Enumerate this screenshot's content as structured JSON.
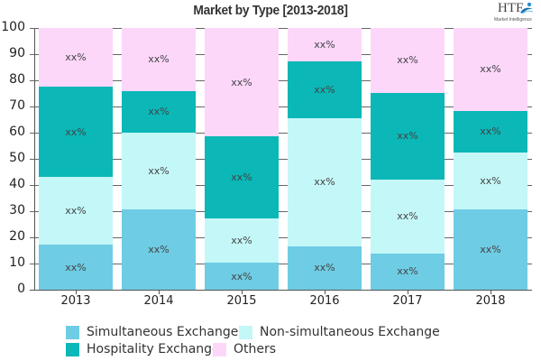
{
  "title": "Market by Type [2013-2018]",
  "logo": {
    "main": "HTF",
    "sub": "Market Intelligence"
  },
  "colors": {
    "simultaneous": "#6ECCE4",
    "non_simultaneous": "#C4F7F8",
    "hospitality": "#0BB7B7",
    "others": "#FCD7FA"
  },
  "segment_label": "xx%",
  "legend": [
    {
      "label": "Simultaneous Exchange",
      "color": "#6ECCE4"
    },
    {
      "label": "Non-simultaneous Exchange",
      "color": "#C4F7F8"
    },
    {
      "label": "Hospitality Exchange",
      "color": "#0BB7B7"
    },
    {
      "label": "Others",
      "color": "#FCD7FA"
    }
  ],
  "y_ticks": [
    "0",
    "10",
    "20",
    "30",
    "40",
    "50",
    "60",
    "70",
    "80",
    "90",
    "100"
  ],
  "chart_data": {
    "type": "bar",
    "stacked": true,
    "title": "Market by Type [2013-2018]",
    "xlabel": "",
    "ylabel": "",
    "ylim": [
      0,
      100
    ],
    "grid": true,
    "legend_position": "bottom",
    "categories": [
      "2013",
      "2014",
      "2015",
      "2016",
      "2017",
      "2018"
    ],
    "series": [
      {
        "name": "Simultaneous Exchange",
        "color": "#6ECCE4",
        "values": [
          17.2,
          30.7,
          10.3,
          16.6,
          13.8,
          30.7
        ]
      },
      {
        "name": "Non-simultaneous Exchange",
        "color": "#C4F7F8",
        "values": [
          25.8,
          29.3,
          16.9,
          48.9,
          28.3,
          21.7
        ]
      },
      {
        "name": "Hospitality Exchange",
        "color": "#0BB7B7",
        "values": [
          34.6,
          15.9,
          31.4,
          21.7,
          33.1,
          15.9
        ]
      },
      {
        "name": "Others",
        "color": "#FCD7FA",
        "values": [
          22.4,
          24.1,
          41.4,
          12.8,
          24.8,
          31.7
        ]
      }
    ],
    "data_labels": "xx%"
  }
}
